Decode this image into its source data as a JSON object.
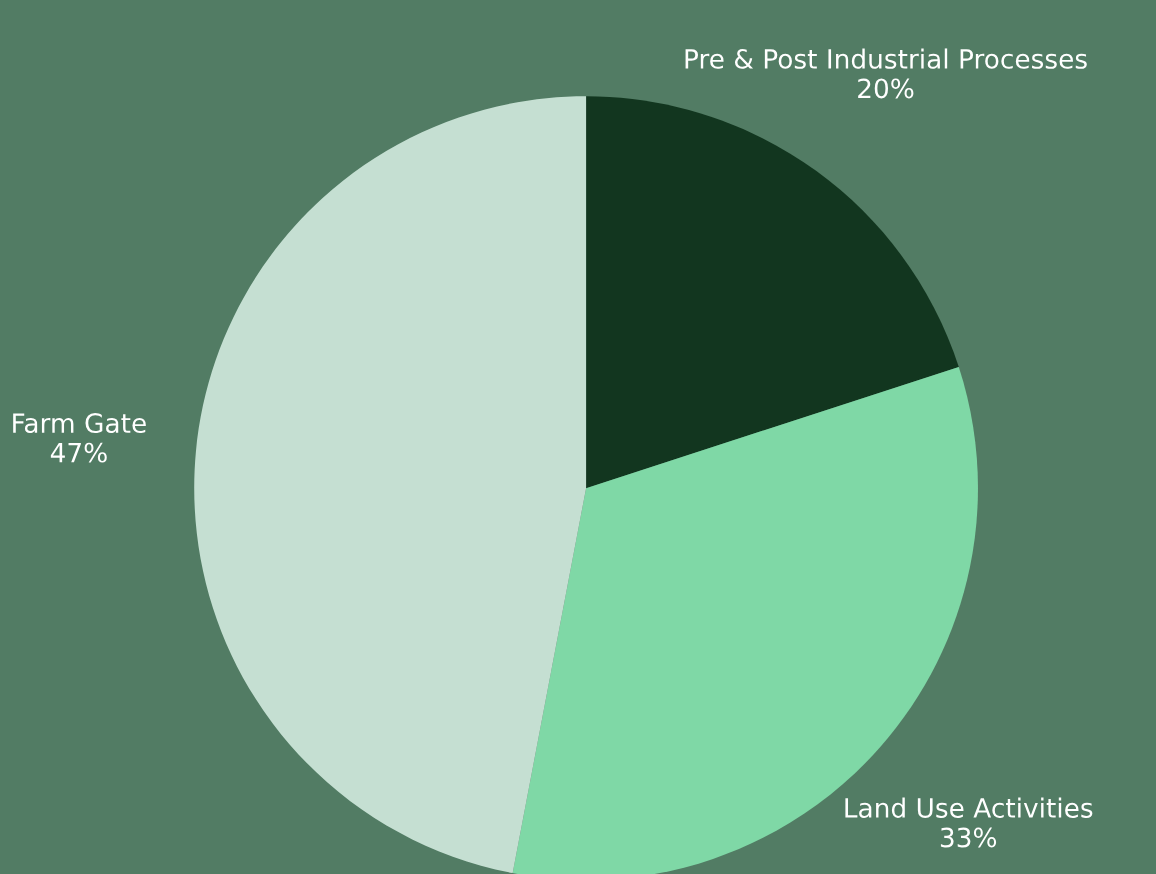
{
  "chart_data": {
    "type": "pie",
    "categories": [
      "Pre & Post Industrial Processes",
      "Land Use Activities",
      "Farm Gate"
    ],
    "values": [
      20,
      33,
      47
    ],
    "value_labels": [
      "20%",
      "33%",
      "47%"
    ],
    "colors": [
      "#12361f",
      "#7fd8a6",
      "#c5dfd2"
    ],
    "legend": false
  }
}
